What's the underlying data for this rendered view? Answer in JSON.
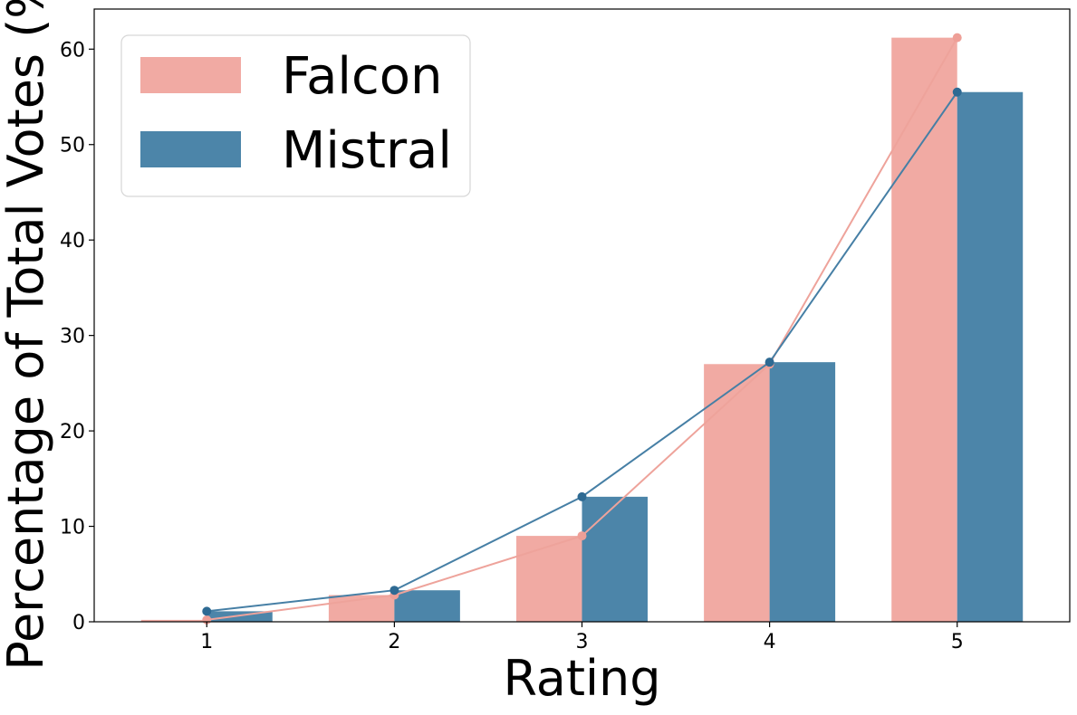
{
  "chart_data": {
    "type": "bar",
    "title": "",
    "xlabel": "Rating",
    "ylabel": "Percentage of Total Votes (%)",
    "categories": [
      "1",
      "2",
      "3",
      "4",
      "5"
    ],
    "x": [
      1,
      2,
      3,
      4,
      5
    ],
    "ylim": [
      0,
      64.2
    ],
    "yticks": [
      0,
      10,
      20,
      30,
      40,
      50,
      60
    ],
    "grid": false,
    "legend": "top-left",
    "series": [
      {
        "name": "Falcon",
        "color": "#f1aaa3",
        "values": [
          0.2,
          2.8,
          9.0,
          27.0,
          61.2
        ],
        "line_overlay": true
      },
      {
        "name": "Mistral",
        "color": "#4c85a9",
        "values": [
          1.1,
          3.3,
          13.1,
          27.2,
          55.5
        ],
        "line_overlay": true
      }
    ]
  }
}
